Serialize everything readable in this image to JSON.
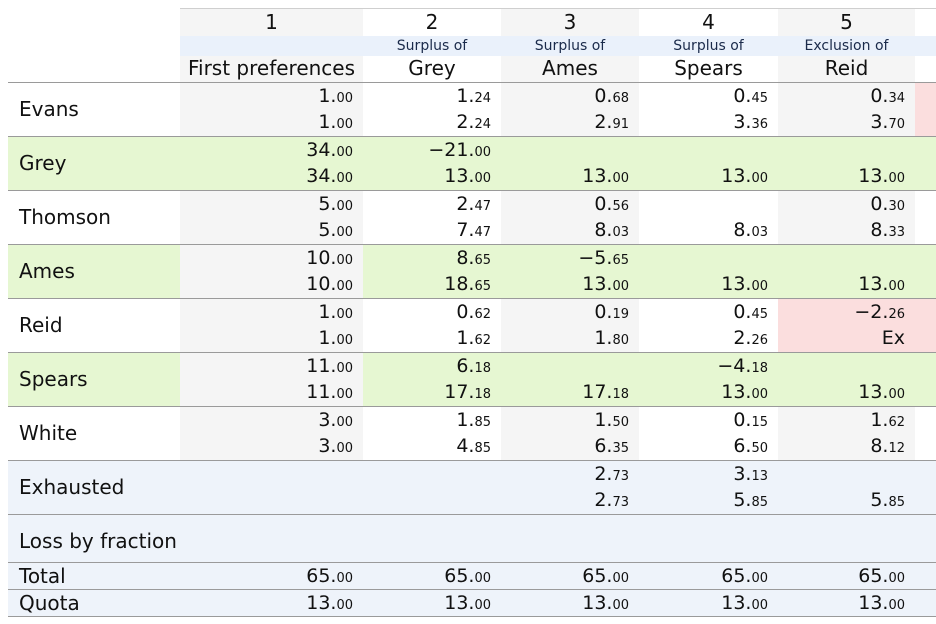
{
  "columns": [
    {
      "number": "1",
      "subtitle": "",
      "title": "First preferences"
    },
    {
      "number": "2",
      "subtitle": "Surplus of",
      "title": "Grey"
    },
    {
      "number": "3",
      "subtitle": "Surplus of",
      "title": "Ames"
    },
    {
      "number": "4",
      "subtitle": "Surplus of",
      "title": "Spears"
    },
    {
      "number": "5",
      "subtitle": "Exclusion of",
      "title": "Reid"
    }
  ],
  "rows": [
    {
      "label": "Evans",
      "status": "excluded-next",
      "cells": [
        {
          "top": "1.00",
          "bottom": "1.00"
        },
        {
          "top": "1.24",
          "bottom": "2.24"
        },
        {
          "top": "0.68",
          "bottom": "2.91"
        },
        {
          "top": "0.45",
          "bottom": "3.36"
        },
        {
          "top": "0.34",
          "bottom": "3.70"
        }
      ]
    },
    {
      "label": "Grey",
      "status": "elected",
      "elected_from": 0,
      "cells": [
        {
          "top": "34.00",
          "bottom": "34.00"
        },
        {
          "top": "−21.00",
          "bottom": "13.00"
        },
        {
          "top": "",
          "bottom": "13.00"
        },
        {
          "top": "",
          "bottom": "13.00"
        },
        {
          "top": "",
          "bottom": "13.00"
        }
      ]
    },
    {
      "label": "Thomson",
      "status": "",
      "cells": [
        {
          "top": "5.00",
          "bottom": "5.00"
        },
        {
          "top": "2.47",
          "bottom": "7.47"
        },
        {
          "top": "0.56",
          "bottom": "8.03"
        },
        {
          "top": "",
          "bottom": "8.03"
        },
        {
          "top": "0.30",
          "bottom": "8.33"
        }
      ]
    },
    {
      "label": "Ames",
      "status": "elected",
      "elected_from": 1,
      "cells": [
        {
          "top": "10.00",
          "bottom": "10.00"
        },
        {
          "top": "8.65",
          "bottom": "18.65"
        },
        {
          "top": "−5.65",
          "bottom": "13.00"
        },
        {
          "top": "",
          "bottom": "13.00"
        },
        {
          "top": "",
          "bottom": "13.00"
        }
      ]
    },
    {
      "label": "Reid",
      "status": "excluded",
      "excluded_at": 4,
      "cells": [
        {
          "top": "1.00",
          "bottom": "1.00"
        },
        {
          "top": "0.62",
          "bottom": "1.62"
        },
        {
          "top": "0.19",
          "bottom": "1.80"
        },
        {
          "top": "0.45",
          "bottom": "2.26"
        },
        {
          "top": "−2.26",
          "bottom": "Ex"
        }
      ]
    },
    {
      "label": "Spears",
      "status": "elected",
      "elected_from": 1,
      "cells": [
        {
          "top": "11.00",
          "bottom": "11.00"
        },
        {
          "top": "6.18",
          "bottom": "17.18"
        },
        {
          "top": "",
          "bottom": "17.18"
        },
        {
          "top": "−4.18",
          "bottom": "13.00"
        },
        {
          "top": "",
          "bottom": "13.00"
        }
      ]
    },
    {
      "label": "White",
      "status": "",
      "cells": [
        {
          "top": "3.00",
          "bottom": "3.00"
        },
        {
          "top": "1.85",
          "bottom": "4.85"
        },
        {
          "top": "1.50",
          "bottom": "6.35"
        },
        {
          "top": "0.15",
          "bottom": "6.50"
        },
        {
          "top": "1.62",
          "bottom": "8.12"
        }
      ]
    },
    {
      "label": "Exhausted",
      "status": "summary",
      "cells": [
        {
          "top": "",
          "bottom": ""
        },
        {
          "top": "",
          "bottom": ""
        },
        {
          "top": "2.73",
          "bottom": "2.73"
        },
        {
          "top": "3.13",
          "bottom": "5.85"
        },
        {
          "top": "",
          "bottom": "5.85"
        }
      ]
    },
    {
      "label": "Loss by fraction",
      "status": "summary",
      "cells": [
        {
          "top": "",
          "bottom": ""
        },
        {
          "top": "",
          "bottom": ""
        },
        {
          "top": "",
          "bottom": ""
        },
        {
          "top": "",
          "bottom": ""
        },
        {
          "top": "",
          "bottom": ""
        }
      ]
    }
  ],
  "totals": [
    {
      "label": "Total",
      "values": [
        "65.00",
        "65.00",
        "65.00",
        "65.00",
        "65.00"
      ]
    },
    {
      "label": "Quota",
      "values": [
        "13.00",
        "13.00",
        "13.00",
        "13.00",
        "13.00"
      ]
    }
  ],
  "colors": {
    "elected": "#e6f7d2",
    "excluded": "#fbdede",
    "summary": "#eef3fa",
    "header_band": "#eaf1fb",
    "count_stripe": "#f5f5f5",
    "grid_line": "#9a9a9a"
  }
}
